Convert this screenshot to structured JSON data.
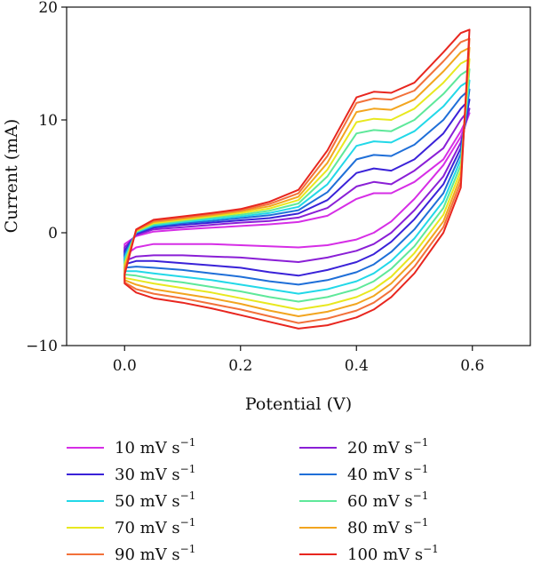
{
  "chart_data": {
    "type": "line",
    "title": "",
    "xlabel": "Potential (V)",
    "ylabel": "Current (mA)",
    "xlim": [
      -0.1,
      0.7
    ],
    "ylim": [
      -10,
      20
    ],
    "xticks": [
      0.0,
      0.2,
      0.4,
      0.6
    ],
    "xtick_labels": [
      "0.0",
      "0.2",
      "0.4",
      "0.6"
    ],
    "yticks": [
      -10,
      0,
      10,
      20
    ],
    "ytick_labels": [
      "−10",
      "0",
      "10",
      "20"
    ],
    "grid": false,
    "legend_position": "below",
    "x": [
      0.0,
      0.02,
      0.05,
      0.1,
      0.15,
      0.2,
      0.25,
      0.3,
      0.35,
      0.4,
      0.43,
      0.46,
      0.5,
      0.55,
      0.58,
      0.595
    ],
    "series": [
      {
        "name": "10 mV s",
        "unit_exponent": "−1",
        "color": "#d62ee6",
        "forward": [
          -1.0,
          -0.3,
          0.1,
          0.3,
          0.45,
          0.6,
          0.75,
          0.95,
          1.5,
          3.0,
          3.5,
          3.5,
          4.5,
          6.5,
          9.0,
          10.6
        ],
        "reverse": [
          -2.0,
          -1.3,
          -1.0,
          -1.0,
          -1.0,
          -1.1,
          -1.2,
          -1.3,
          -1.1,
          -0.6,
          0.0,
          1.0,
          3.0,
          6.0,
          8.5,
          10.6
        ]
      },
      {
        "name": "20 mV s",
        "unit_exponent": "−1",
        "color": "#8a1fd6",
        "forward": [
          -1.3,
          -0.2,
          0.3,
          0.5,
          0.7,
          0.9,
          1.05,
          1.35,
          2.2,
          4.1,
          4.5,
          4.3,
          5.5,
          7.5,
          10.0,
          11.0
        ],
        "reverse": [
          -2.5,
          -2.1,
          -2.0,
          -2.0,
          -2.1,
          -2.2,
          -2.4,
          -2.6,
          -2.2,
          -1.6,
          -1.0,
          0.0,
          2.0,
          5.0,
          8.0,
          11.0
        ]
      },
      {
        "name": "30 mV s",
        "unit_exponent": "−1",
        "color": "#3a22d8",
        "forward": [
          -1.6,
          -0.1,
          0.45,
          0.7,
          0.9,
          1.1,
          1.3,
          1.7,
          2.9,
          5.3,
          5.7,
          5.5,
          6.5,
          8.8,
          11.0,
          11.8
        ],
        "reverse": [
          -2.8,
          -2.5,
          -2.5,
          -2.7,
          -2.9,
          -3.1,
          -3.5,
          -3.8,
          -3.3,
          -2.6,
          -1.9,
          -0.8,
          1.2,
          4.3,
          7.5,
          11.8
        ]
      },
      {
        "name": "40 mV s",
        "unit_exponent": "−1",
        "color": "#1f6fd8",
        "forward": [
          -1.9,
          0.0,
          0.55,
          0.85,
          1.05,
          1.3,
          1.55,
          2.0,
          3.6,
          6.5,
          6.9,
          6.8,
          7.8,
          10.0,
          12.0,
          12.7
        ],
        "reverse": [
          -3.1,
          -3.0,
          -3.1,
          -3.3,
          -3.6,
          -3.9,
          -4.3,
          -4.6,
          -4.2,
          -3.5,
          -2.8,
          -1.7,
          0.3,
          3.5,
          7.0,
          12.7
        ]
      },
      {
        "name": "50 mV s",
        "unit_exponent": "−1",
        "color": "#22d8e8",
        "forward": [
          -2.2,
          0.05,
          0.65,
          0.95,
          1.2,
          1.45,
          1.75,
          2.3,
          4.3,
          7.7,
          8.1,
          8.0,
          9.0,
          11.2,
          13.0,
          13.5
        ],
        "reverse": [
          -3.4,
          -3.4,
          -3.6,
          -3.9,
          -4.2,
          -4.6,
          -5.0,
          -5.4,
          -5.0,
          -4.3,
          -3.6,
          -2.5,
          -0.5,
          2.8,
          6.5,
          13.5
        ]
      },
      {
        "name": "60 mV s",
        "unit_exponent": "−1",
        "color": "#5ee89a",
        "forward": [
          -2.5,
          0.1,
          0.75,
          1.05,
          1.35,
          1.6,
          1.95,
          2.6,
          5.0,
          8.8,
          9.1,
          9.0,
          10.0,
          12.3,
          14.0,
          14.5
        ],
        "reverse": [
          -3.7,
          -3.8,
          -4.1,
          -4.4,
          -4.8,
          -5.2,
          -5.7,
          -6.1,
          -5.7,
          -5.0,
          -4.3,
          -3.2,
          -1.2,
          2.2,
          6.0,
          14.5
        ]
      },
      {
        "name": "70 mV s",
        "unit_exponent": "−1",
        "color": "#e8e81f",
        "forward": [
          -2.8,
          0.15,
          0.85,
          1.15,
          1.45,
          1.75,
          2.15,
          2.9,
          5.6,
          9.8,
          10.1,
          10.0,
          11.0,
          13.3,
          15.0,
          15.4
        ],
        "reverse": [
          -4.0,
          -4.2,
          -4.5,
          -4.9,
          -5.3,
          -5.8,
          -6.3,
          -6.8,
          -6.4,
          -5.7,
          -5.0,
          -3.9,
          -1.8,
          1.6,
          5.5,
          15.4
        ]
      },
      {
        "name": "80 mV s",
        "unit_exponent": "−1",
        "color": "#f2a51f",
        "forward": [
          -3.1,
          0.2,
          0.95,
          1.25,
          1.55,
          1.9,
          2.35,
          3.2,
          6.2,
          10.7,
          11.0,
          10.9,
          11.8,
          14.3,
          16.0,
          16.4
        ],
        "reverse": [
          -4.2,
          -4.6,
          -5.0,
          -5.4,
          -5.8,
          -6.3,
          -6.9,
          -7.4,
          -7.0,
          -6.3,
          -5.6,
          -4.5,
          -2.4,
          1.0,
          5.0,
          16.4
        ]
      },
      {
        "name": "90 mV s",
        "unit_exponent": "−1",
        "color": "#f2713a",
        "forward": [
          -3.4,
          0.25,
          1.05,
          1.35,
          1.65,
          2.0,
          2.55,
          3.5,
          6.8,
          11.5,
          11.9,
          11.8,
          12.6,
          15.2,
          16.9,
          17.2
        ],
        "reverse": [
          -4.4,
          -5.0,
          -5.4,
          -5.8,
          -6.3,
          -6.8,
          -7.4,
          -8.0,
          -7.6,
          -6.9,
          -6.2,
          -5.1,
          -3.0,
          0.5,
          4.5,
          17.2
        ]
      },
      {
        "name": "100 mV s",
        "unit_exponent": "−1",
        "color": "#e8261f",
        "forward": [
          -3.7,
          0.3,
          1.15,
          1.45,
          1.75,
          2.1,
          2.75,
          3.8,
          7.3,
          12.0,
          12.5,
          12.4,
          13.3,
          16.0,
          17.7,
          18.0
        ],
        "reverse": [
          -4.5,
          -5.3,
          -5.8,
          -6.2,
          -6.7,
          -7.3,
          -7.9,
          -8.5,
          -8.2,
          -7.5,
          -6.8,
          -5.7,
          -3.6,
          0.0,
          4.0,
          18.0
        ]
      }
    ]
  }
}
